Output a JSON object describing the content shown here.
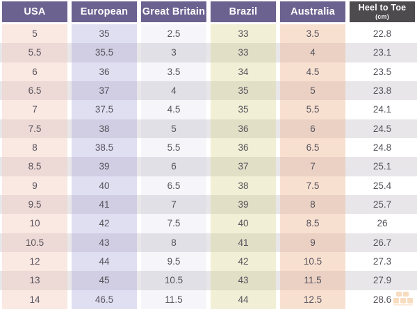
{
  "colors": {
    "header_purple": "#6c6290",
    "header_dark": "#4d4b4e",
    "row_stripe": "#e8e6e9",
    "data_text": "#56525b",
    "watermark_orange": "#e8851c"
  },
  "table": {
    "columns": [
      {
        "key": "usa",
        "label": "USA",
        "sub": "",
        "header_style": "purple"
      },
      {
        "key": "european",
        "label": "European",
        "sub": "",
        "header_style": "purple"
      },
      {
        "key": "great-britain",
        "label": "Great Britain",
        "sub": "",
        "header_style": "purple"
      },
      {
        "key": "brazil",
        "label": "Brazil",
        "sub": "",
        "header_style": "purple"
      },
      {
        "key": "australia",
        "label": "Australia",
        "sub": "",
        "header_style": "purple"
      },
      {
        "key": "heel-to-toe",
        "label": "Heel to Toe",
        "sub": "(cm)",
        "header_style": "dark"
      }
    ],
    "rows": [
      [
        "5",
        "35",
        "2.5",
        "33",
        "3.5",
        "22.8"
      ],
      [
        "5.5",
        "35.5",
        "3",
        "33",
        "4",
        "23.1"
      ],
      [
        "6",
        "36",
        "3.5",
        "34",
        "4.5",
        "23.5"
      ],
      [
        "6.5",
        "37",
        "4",
        "35",
        "5",
        "23.8"
      ],
      [
        "7",
        "37.5",
        "4.5",
        "35",
        "5.5",
        "24.1"
      ],
      [
        "7.5",
        "38",
        "5",
        "36",
        "6",
        "24.5"
      ],
      [
        "8",
        "38.5",
        "5.5",
        "36",
        "6.5",
        "24.8"
      ],
      [
        "8.5",
        "39",
        "6",
        "37",
        "7",
        "25.1"
      ],
      [
        "9",
        "40",
        "6.5",
        "38",
        "7.5",
        "25.4"
      ],
      [
        "9.5",
        "41",
        "7",
        "39",
        "8",
        "25.7"
      ],
      [
        "10",
        "42",
        "7.5",
        "40",
        "8.5",
        "26"
      ],
      [
        "10.5",
        "43",
        "8",
        "41",
        "9",
        "26.7"
      ],
      [
        "12",
        "44",
        "9.5",
        "42",
        "10.5",
        "27.3"
      ],
      [
        "13",
        "45",
        "10.5",
        "43",
        "11.5",
        "27.9"
      ],
      [
        "14",
        "46.5",
        "11.5",
        "44",
        "12.5",
        "28.6"
      ]
    ]
  },
  "watermark": {
    "icon": "boxes-logo-icon"
  }
}
